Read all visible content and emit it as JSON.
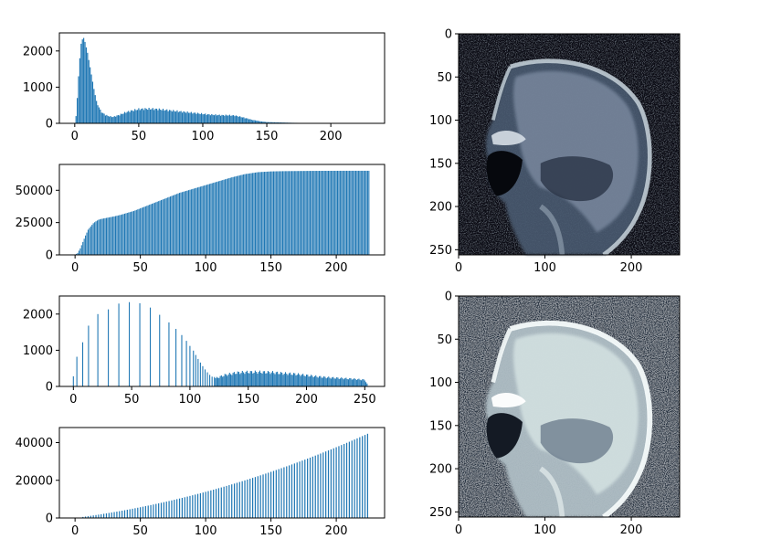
{
  "chart_data": [
    {
      "type": "bar",
      "position": "top-left",
      "description": "histogram of original image intensities",
      "xlim": [
        -12,
        242
      ],
      "ylim": [
        0,
        2500
      ],
      "xticks": [
        0,
        50,
        100,
        150,
        200
      ],
      "yticks": [
        0,
        1000,
        2000
      ],
      "bar_step": 1,
      "x": [
        0,
        1,
        2,
        3,
        4,
        5,
        6,
        7,
        8,
        9,
        10,
        11,
        12,
        13,
        14,
        15,
        16,
        17,
        18,
        20,
        22,
        24,
        26,
        28,
        30,
        35,
        40,
        45,
        50,
        55,
        60,
        65,
        70,
        75,
        80,
        85,
        90,
        95,
        100,
        105,
        110,
        115,
        120,
        125,
        130,
        135,
        140,
        145,
        150,
        160,
        170,
        180,
        190,
        200,
        205,
        210,
        230
      ],
      "values": [
        10,
        200,
        700,
        1300,
        1800,
        2200,
        2320,
        2360,
        2250,
        2100,
        1950,
        1750,
        1550,
        1350,
        1150,
        950,
        780,
        620,
        500,
        380,
        300,
        250,
        220,
        200,
        190,
        250,
        330,
        380,
        420,
        430,
        430,
        420,
        400,
        380,
        360,
        340,
        320,
        300,
        280,
        260,
        250,
        240,
        240,
        230,
        190,
        140,
        90,
        55,
        35,
        25,
        15,
        10,
        5,
        3,
        10,
        0,
        0
      ]
    },
    {
      "type": "bar",
      "position": "second-left",
      "description": "cumulative histogram of original image",
      "xlim": [
        -12,
        237
      ],
      "ylim": [
        0,
        70000
      ],
      "xticks": [
        0,
        50,
        100,
        150,
        200
      ],
      "yticks": [
        0,
        25000,
        50000
      ],
      "bar_step": 1,
      "x": [
        0,
        2,
        4,
        6,
        8,
        10,
        12,
        14,
        16,
        18,
        20,
        22,
        25,
        30,
        35,
        40,
        45,
        50,
        55,
        60,
        65,
        70,
        75,
        80,
        90,
        100,
        110,
        120,
        130,
        140,
        150,
        160,
        170,
        180,
        190,
        200,
        210,
        220,
        225
      ],
      "values": [
        0,
        1500,
        5000,
        10000,
        15000,
        19500,
        22000,
        24500,
        26000,
        27200,
        27800,
        28200,
        28800,
        29800,
        31000,
        32500,
        34000,
        36000,
        38000,
        40000,
        42000,
        44000,
        46000,
        48000,
        51000,
        54000,
        57000,
        60000,
        62500,
        64000,
        64600,
        64800,
        64900,
        65000,
        65050,
        65080,
        65100,
        65100,
        65100
      ]
    },
    {
      "type": "bar",
      "position": "third-left",
      "description": "histogram after equalization",
      "xlim": [
        -12,
        267
      ],
      "ylim": [
        0,
        2500
      ],
      "xticks": [
        0,
        50,
        100,
        150,
        200,
        250
      ],
      "yticks": [
        0,
        1000,
        2000
      ],
      "spikes": [
        [
          0,
          280
        ],
        [
          3,
          820
        ],
        [
          8,
          1220
        ],
        [
          13,
          1680
        ],
        [
          21,
          2000
        ],
        [
          30,
          2130
        ],
        [
          39,
          2290
        ],
        [
          48,
          2330
        ],
        [
          57,
          2300
        ],
        [
          66,
          2180
        ],
        [
          74,
          1980
        ],
        [
          82,
          1770
        ],
        [
          88,
          1590
        ],
        [
          93,
          1420
        ],
        [
          97,
          1260
        ],
        [
          100,
          1120
        ],
        [
          103,
          990
        ],
        [
          105,
          870
        ],
        [
          107,
          760
        ],
        [
          109,
          660
        ],
        [
          111,
          560
        ],
        [
          113,
          470
        ],
        [
          115,
          390
        ],
        [
          117,
          320
        ],
        [
          119,
          270
        ],
        [
          121,
          260
        ]
      ],
      "dense_x": [
        122,
        130,
        140,
        150,
        160,
        170,
        180,
        190,
        200,
        210,
        220,
        230,
        240,
        250,
        252
      ],
      "dense_values": [
        250,
        350,
        420,
        440,
        440,
        430,
        400,
        380,
        340,
        300,
        270,
        250,
        230,
        200,
        80
      ]
    },
    {
      "type": "bar",
      "position": "bottom-left",
      "description": "cumulative histogram after equalization",
      "xlim": [
        -12,
        237
      ],
      "ylim": [
        0,
        48000
      ],
      "xticks": [
        0,
        50,
        100,
        150,
        200
      ],
      "yticks": [
        0,
        20000,
        40000
      ],
      "bar_step": 2,
      "x": [
        0,
        225
      ],
      "values": [
        0,
        45000
      ],
      "curve": "quadratic-to-linear"
    }
  ],
  "images": [
    {
      "name": "original-mri",
      "position": "top-right",
      "xticks": [
        0,
        100,
        200
      ],
      "yticks": [
        0,
        50,
        100,
        150,
        200,
        250
      ],
      "extent": [
        0,
        256
      ]
    },
    {
      "name": "equalized-mri",
      "position": "bottom-right",
      "xticks": [
        0,
        100,
        200
      ],
      "yticks": [
        0,
        50,
        100,
        150,
        200,
        250
      ],
      "extent": [
        0,
        256
      ]
    }
  ],
  "colors": {
    "bar": "#1f77b4",
    "background": "#ffffff",
    "axis": "#000000"
  }
}
